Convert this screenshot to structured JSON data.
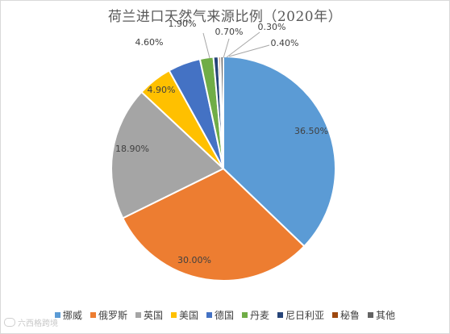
{
  "chart_data": {
    "type": "pie",
    "title": "荷兰进口天然气来源比例（2020年）",
    "slices": [
      {
        "name": "挪威",
        "value": 36.5,
        "label": "36.50%",
        "color": "#5b9bd5"
      },
      {
        "name": "俄罗斯",
        "value": 30.0,
        "label": "30.00%",
        "color": "#ed7d31"
      },
      {
        "name": "英国",
        "value": 18.9,
        "label": "18.90%",
        "color": "#a5a5a5"
      },
      {
        "name": "美国",
        "value": 4.9,
        "label": "4.90%",
        "color": "#ffc000"
      },
      {
        "name": "德国",
        "value": 4.6,
        "label": "4.60%",
        "color": "#4472c4"
      },
      {
        "name": "丹麦",
        "value": 1.9,
        "label": "1.90%",
        "color": "#70ad47"
      },
      {
        "name": "尼日利亚",
        "value": 0.7,
        "label": "0.70%",
        "color": "#264478"
      },
      {
        "name": "秘鲁",
        "value": 0.3,
        "label": "0.30%",
        "color": "#9e480e"
      },
      {
        "name": "其他",
        "value": 0.4,
        "label": "0.40%",
        "color": "#636363"
      }
    ],
    "legend_position": "bottom"
  },
  "watermark": {
    "text": "六西格跨境",
    "icon": "speech-bubble-icon"
  }
}
